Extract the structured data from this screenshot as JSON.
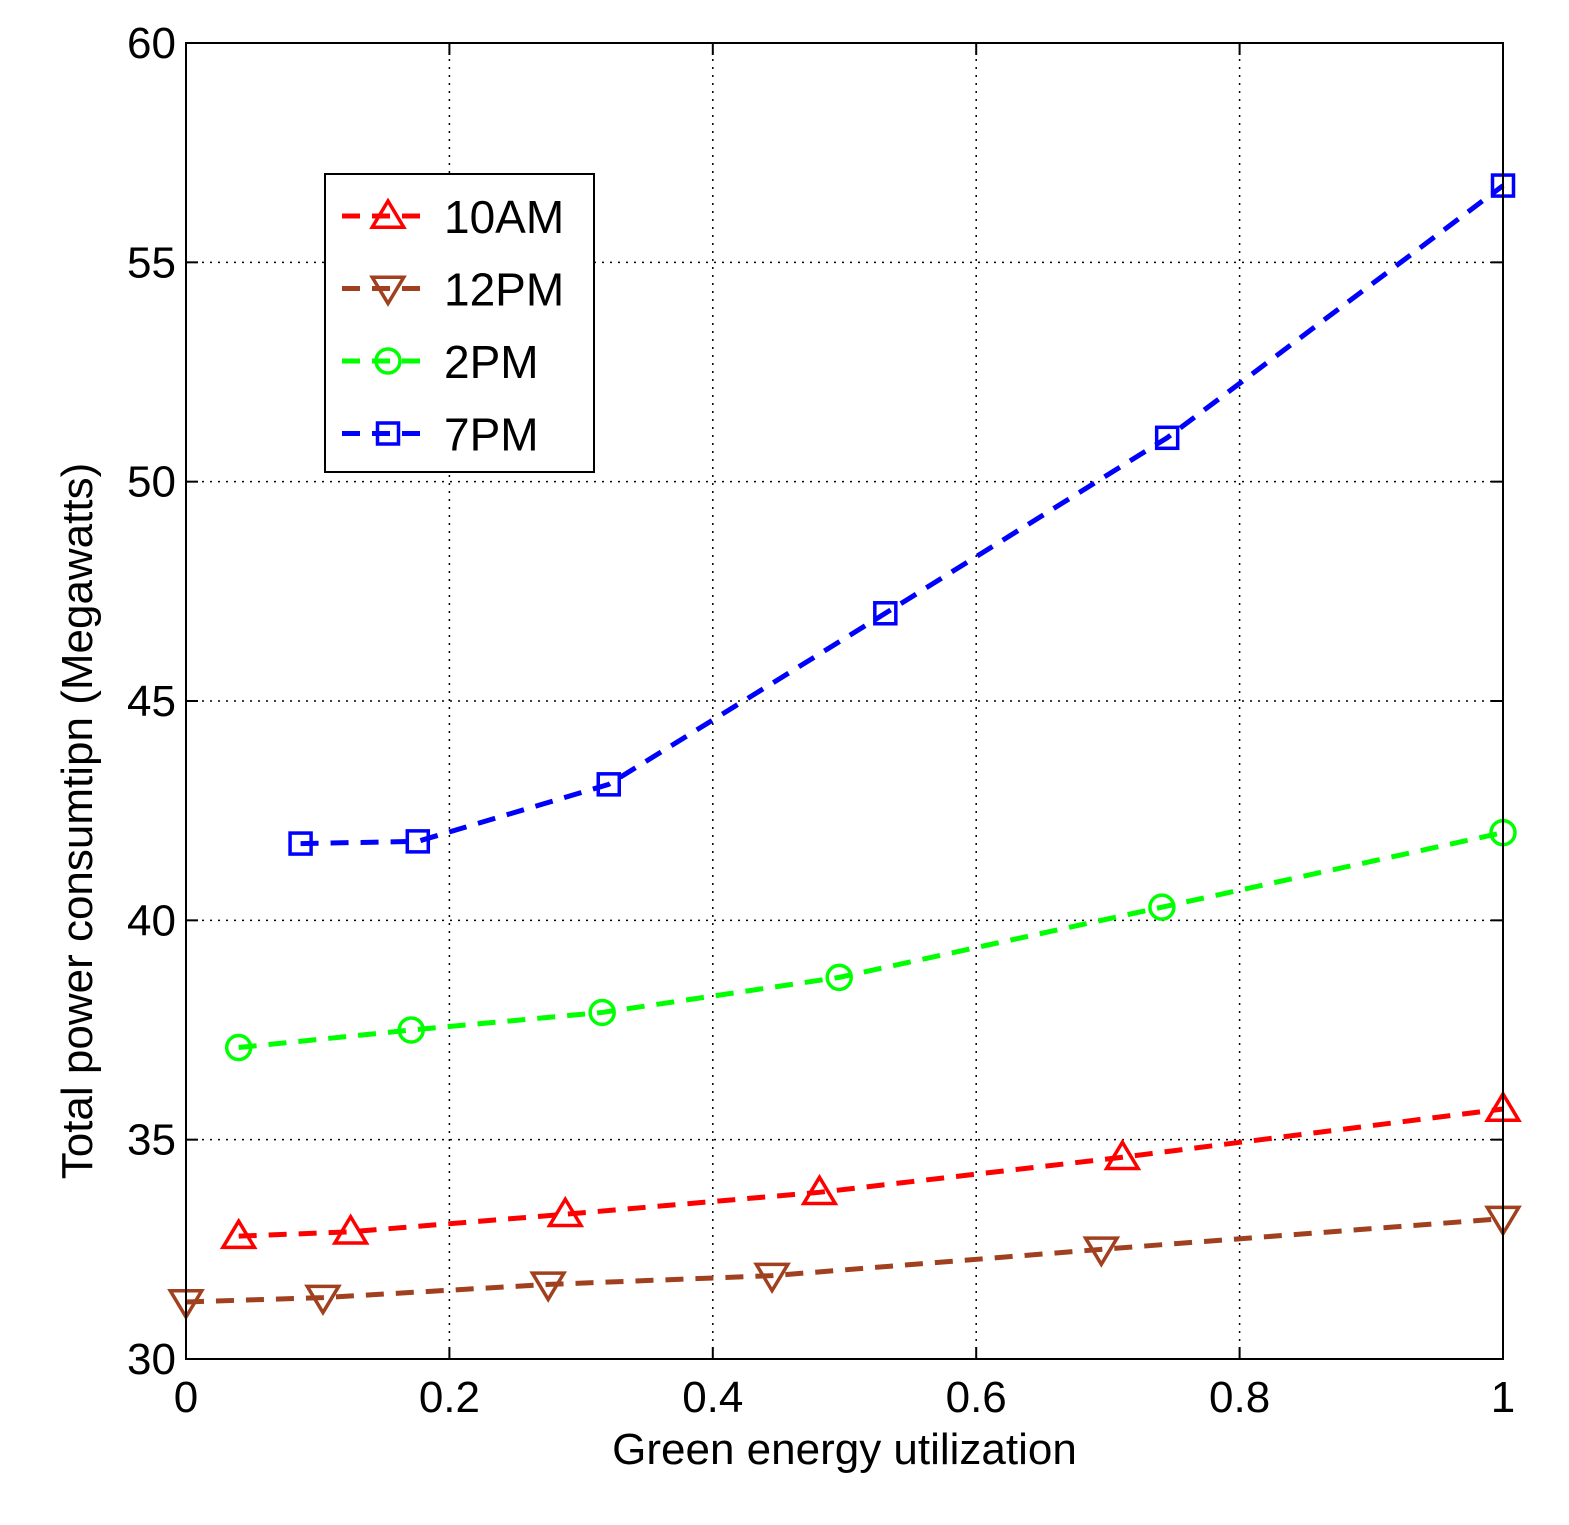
{
  "chart_data": {
    "type": "line",
    "title": "",
    "xlabel": "Green energy utilization",
    "ylabel": "Total power consumtipn (Megawatts)",
    "xlim": [
      0,
      1
    ],
    "ylim": [
      30,
      60
    ],
    "xticks": [
      0,
      0.2,
      0.4,
      0.6,
      0.8,
      1
    ],
    "xtick_labels": [
      "0",
      "0.2",
      "0.4",
      "0.6",
      "0.8",
      "1"
    ],
    "yticks": [
      30,
      35,
      40,
      45,
      50,
      55,
      60
    ],
    "ytick_labels": [
      "30",
      "35",
      "40",
      "45",
      "50",
      "55",
      "60"
    ],
    "grid": true,
    "legend_position": "top-left",
    "series": [
      {
        "name": "10AM",
        "color": "#ff0000",
        "marker": "triangle-up",
        "x": [
          0.04,
          0.125,
          0.288,
          0.481,
          0.711,
          1.0
        ],
        "y": [
          32.8,
          32.9,
          33.3,
          33.8,
          34.6,
          35.7
        ]
      },
      {
        "name": "12PM",
        "color": "#a0401e",
        "marker": "triangle-down",
        "x": [
          0.0,
          0.104,
          0.275,
          0.445,
          0.695,
          1.0
        ],
        "y": [
          31.3,
          31.4,
          31.7,
          31.9,
          32.5,
          33.2
        ]
      },
      {
        "name": "2PM",
        "color": "#00ff00",
        "marker": "circle",
        "x": [
          0.04,
          0.171,
          0.316,
          0.496,
          0.741,
          1.0
        ],
        "y": [
          37.1,
          37.5,
          37.9,
          38.7,
          40.3,
          42.0
        ]
      },
      {
        "name": "7PM",
        "color": "#0000ff",
        "marker": "square",
        "x": [
          0.087,
          0.176,
          0.321,
          0.531,
          0.745,
          1.0
        ],
        "y": [
          41.75,
          41.8,
          43.1,
          47.0,
          51.0,
          56.75
        ]
      }
    ]
  }
}
